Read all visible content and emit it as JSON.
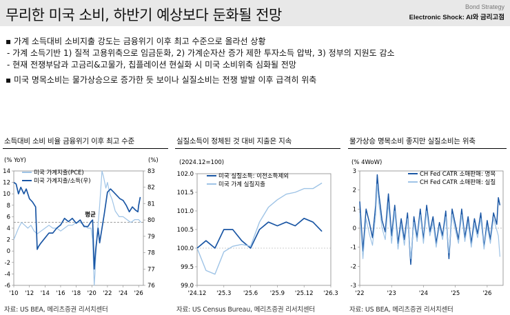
{
  "header": {
    "title": "무리한 미국 소비, 하반기 예상보다 둔화될 전망",
    "category": "Bond Strategy",
    "subtitle": "Electronic Shock: AI와 금리고점"
  },
  "bullets": [
    {
      "type": "main",
      "text": "▪ 가계 소득대비 소비지출 강도는 금융위기 이후 최고 수준으로 올라선 상황"
    },
    {
      "type": "sub",
      "text": "- 가계 소득기반 1) 질적 고용위축으로 임금둔화, 2) 가계순자산 증가 제한 투자소득 압박, 3) 정부의 지원도 감소"
    },
    {
      "type": "sub",
      "text": "- 현재 전쟁부담과 고금리&고물가, 칩플레이션 현실화 시 미국 소비위축 심화될 전망"
    },
    {
      "type": "main",
      "text": "▪ 미국 명목소비는 물가상승으로 증가한 듯 보이나 실질소비는 전쟁 발발 이후 급격히 위축"
    }
  ],
  "panels": [
    {
      "title": "소득대비 소비 비율 금융위기 이후 최고 수준",
      "source": "자료: US BEA, 메리츠증권 리서치센터"
    },
    {
      "title": "실질소득이 정체된 것 대비 지출은 지속",
      "source": "자료: US Census Bureau, 메리츠증권 리서치센터"
    },
    {
      "title": "물가상승 명목소비 좋지만 실질소비는 위축",
      "source": "자료: US BEA, 메리츠증권 리서치센터"
    }
  ],
  "chart_data": [
    {
      "type": "line",
      "left_unit": "(% YoY)",
      "right_unit": "(%)",
      "yleft_lim": [
        -6,
        14
      ],
      "yleft_ticks": [
        -6,
        -4,
        -2,
        0,
        2,
        4,
        6,
        8,
        10,
        12,
        14
      ],
      "yright_lim": [
        76,
        83
      ],
      "yright_ticks": [
        76,
        77,
        78,
        79,
        80,
        81,
        82,
        83
      ],
      "xlim": [
        2010,
        2026.6
      ],
      "x_ticks": [
        {
          "v": 2010,
          "label": "'10"
        },
        {
          "v": 2012,
          "label": "'12"
        },
        {
          "v": 2014,
          "label": "'14"
        },
        {
          "v": 2016,
          "label": "'16"
        },
        {
          "v": 2018,
          "label": "'18"
        },
        {
          "v": 2020,
          "label": "'20"
        },
        {
          "v": 2022,
          "label": "'22"
        },
        {
          "v": 2024,
          "label": "'24"
        },
        {
          "v": 2026,
          "label": "'26"
        }
      ],
      "annotation": {
        "text": "평균",
        "x": 2019.8,
        "y": 80.05
      },
      "average_right": 79.85,
      "series": [
        {
          "name": "미국 가계지출(PCE)",
          "axis": "left",
          "color": "#9ec3e6",
          "x": [
            2010,
            2010.3,
            2010.6,
            2011,
            2011.4,
            2011.8,
            2012.2,
            2012.6,
            2013,
            2013.5,
            2014,
            2014.5,
            2015,
            2015.5,
            2016,
            2016.5,
            2017,
            2017.5,
            2018,
            2018.5,
            2019,
            2019.5,
            2019.9,
            2020.1,
            2020.3,
            2020.4,
            2020.5,
            2020.7,
            2021,
            2021.3,
            2021.5,
            2021.8,
            2022,
            2022.3,
            2022.6,
            2023,
            2023.5,
            2024,
            2024.5,
            2025,
            2025.5,
            2026,
            2026.3
          ],
          "y": [
            2,
            3,
            4,
            5,
            4.5,
            4,
            4.5,
            3.5,
            3,
            3.5,
            4,
            4.5,
            4,
            4,
            3.5,
            4,
            4.5,
            4.5,
            5,
            5,
            4.5,
            4,
            4,
            2,
            -6,
            -4,
            -1,
            3,
            8,
            14,
            13,
            11,
            12,
            10,
            9,
            7,
            6,
            6,
            5.5,
            5,
            5.5,
            5.5,
            5
          ]
        },
        {
          "name": "미국 가계지출/소득(우)",
          "axis": "right",
          "color": "#1a56a4",
          "x": [
            2010,
            2010.3,
            2010.6,
            2010.9,
            2011.3,
            2011.6,
            2012,
            2012.4,
            2012.8,
            2013,
            2013.2,
            2013.5,
            2014,
            2014.5,
            2015,
            2015.5,
            2016,
            2016.5,
            2017,
            2017.5,
            2018,
            2018.5,
            2019,
            2019.5,
            2019.9,
            2020.1,
            2020.3,
            2020.5,
            2020.8,
            2021,
            2021.3,
            2021.6,
            2022,
            2022.4,
            2022.8,
            2023.2,
            2023.6,
            2024,
            2024.4,
            2024.8,
            2025.2,
            2025.6,
            2025.9,
            2026,
            2026.2
          ],
          "y": [
            82.3,
            82.2,
            81.6,
            82,
            81.6,
            81.9,
            81.3,
            81.1,
            80.8,
            78.2,
            78.4,
            78.6,
            78.9,
            79.2,
            79.2,
            79.5,
            79.7,
            80.1,
            79.9,
            80.1,
            79.8,
            80,
            79.6,
            79.6,
            79.9,
            80,
            77,
            78.2,
            79.5,
            78.6,
            79.5,
            80.4,
            81.7,
            81.9,
            81.7,
            81.5,
            81.3,
            81.2,
            80.9,
            80.5,
            80.8,
            80.6,
            80.5,
            80.9,
            81.4
          ]
        }
      ]
    },
    {
      "type": "line",
      "unit": "(2024.12=100)",
      "ylim": [
        99.0,
        102.0
      ],
      "yticks": [
        99.0,
        99.5,
        100.0,
        100.5,
        101.0,
        101.5,
        102.0
      ],
      "xlim": [
        0,
        15
      ],
      "x_ticks": [
        {
          "v": 0,
          "label": "'24.12"
        },
        {
          "v": 3,
          "label": "'25.3"
        },
        {
          "v": 6,
          "label": "'25.6"
        },
        {
          "v": 9,
          "label": "'25.9"
        },
        {
          "v": 12,
          "label": "'25.12"
        },
        {
          "v": 15,
          "label": "'26.3"
        }
      ],
      "series": [
        {
          "name": "미국 실질소득: 이전소득제외",
          "color": "#1a56a4",
          "x": [
            0,
            1,
            2,
            3,
            4,
            5,
            6,
            7,
            8,
            9,
            10,
            11,
            12,
            13,
            14
          ],
          "y": [
            100.0,
            100.2,
            100.0,
            100.5,
            100.5,
            100.2,
            100.0,
            100.5,
            100.7,
            100.6,
            100.7,
            100.6,
            100.8,
            100.7,
            100.45
          ]
        },
        {
          "name": "미국 가계 실질지출",
          "color": "#9ec3e6",
          "x": [
            0,
            1,
            2,
            3,
            4,
            5,
            6,
            7,
            8,
            9,
            10,
            11,
            12,
            13,
            14
          ],
          "y": [
            100.0,
            99.4,
            99.3,
            99.9,
            100.05,
            100.1,
            100.05,
            100.7,
            101.1,
            101.3,
            101.45,
            101.5,
            101.6,
            101.6,
            101.75
          ]
        }
      ]
    },
    {
      "type": "line",
      "unit": "(% 4WoW)",
      "ylim": [
        -3,
        3
      ],
      "yticks": [
        -3,
        -2,
        -1,
        0,
        1,
        2,
        3
      ],
      "xlim": [
        2022,
        2026.5
      ],
      "x_ticks": [
        {
          "v": 2022,
          "label": "'22"
        },
        {
          "v": 2023,
          "label": "'23"
        },
        {
          "v": 2024,
          "label": "'24"
        },
        {
          "v": 2025,
          "label": "'25"
        },
        {
          "v": 2026,
          "label": "'26"
        }
      ],
      "series": [
        {
          "name": "CH Fed CATR 소매판매: 명목",
          "color": "#1a56a4",
          "x": [
            2022,
            2022.1,
            2022.2,
            2022.3,
            2022.4,
            2022.5,
            2022.55,
            2022.6,
            2022.7,
            2022.8,
            2022.9,
            2023,
            2023.1,
            2023.2,
            2023.3,
            2023.4,
            2023.5,
            2023.6,
            2023.7,
            2023.8,
            2023.9,
            2024,
            2024.1,
            2024.2,
            2024.3,
            2024.4,
            2024.5,
            2024.6,
            2024.7,
            2024.8,
            2024.9,
            2025,
            2025.1,
            2025.2,
            2025.3,
            2025.4,
            2025.5,
            2025.6,
            2025.7,
            2025.8,
            2025.9,
            2026,
            2026.1,
            2026.2,
            2026.3,
            2026.35,
            2026.4
          ],
          "y": [
            1.4,
            -1.2,
            1.0,
            0.3,
            -0.5,
            1.2,
            2.8,
            1.8,
            0.4,
            -0.2,
            1.8,
            -0.4,
            1.2,
            -0.8,
            0.5,
            -0.6,
            0.8,
            -1.9,
            0.6,
            -0.5,
            1.0,
            -0.6,
            1.2,
            -0.2,
            0.6,
            -0.8,
            0.3,
            -0.4,
            0.9,
            -1.6,
            1.0,
            0.2,
            -0.6,
            1.0,
            -0.5,
            0.6,
            -0.8,
            0.5,
            -0.3,
            0.8,
            -1.0,
            0.4,
            -0.6,
            0.8,
            0.2,
            1.6,
            1.2
          ]
        },
        {
          "name": "CH Fed CATR 소매판매: 실질",
          "color": "#9ec3e6",
          "x": [
            2022,
            2022.1,
            2022.2,
            2022.3,
            2022.4,
            2022.5,
            2022.55,
            2022.6,
            2022.7,
            2022.8,
            2022.9,
            2023,
            2023.1,
            2023.2,
            2023.3,
            2023.4,
            2023.5,
            2023.6,
            2023.7,
            2023.8,
            2023.9,
            2024,
            2024.1,
            2024.2,
            2024.3,
            2024.4,
            2024.5,
            2024.6,
            2024.7,
            2024.8,
            2024.9,
            2025,
            2025.1,
            2025.2,
            2025.3,
            2025.4,
            2025.5,
            2025.6,
            2025.7,
            2025.8,
            2025.9,
            2026,
            2026.1,
            2026.2,
            2026.3,
            2026.35,
            2026.4
          ],
          "y": [
            0.8,
            -1.6,
            0.5,
            -0.3,
            -0.9,
            0.7,
            2.3,
            1.3,
            0.0,
            -0.6,
            1.3,
            -0.8,
            0.9,
            -1.1,
            0.2,
            -0.9,
            0.5,
            -1.6,
            0.3,
            -0.7,
            0.7,
            -0.8,
            0.9,
            -0.4,
            0.3,
            -1.0,
            0.1,
            -0.6,
            0.6,
            -1.3,
            0.7,
            -0.1,
            -0.8,
            0.7,
            -0.7,
            0.3,
            -1.0,
            0.2,
            -0.5,
            0.5,
            -1.1,
            0.1,
            -0.8,
            0.5,
            -0.1,
            -0.4,
            -1.5
          ]
        }
      ]
    }
  ]
}
